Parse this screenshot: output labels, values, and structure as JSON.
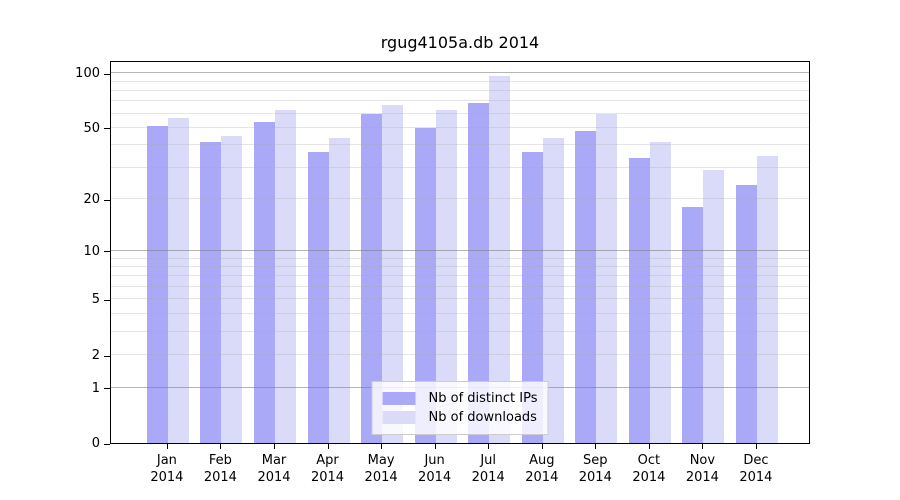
{
  "title": "rgug4105a.db 2014",
  "colors": {
    "ips_bar": "#a9a9f7",
    "downloads_bar": "#dadaf9",
    "axis": "#000000",
    "legend_border": "#cccccc"
  },
  "legend": {
    "items": [
      {
        "label": "Nb of distinct IPs",
        "color": "#a9a9f7"
      },
      {
        "label": "Nb of downloads",
        "color": "#dadaf9"
      }
    ]
  },
  "chart_data": {
    "type": "bar",
    "title": "rgug4105a.db 2014",
    "categories": [
      "Jan",
      "Feb",
      "Mar",
      "Apr",
      "May",
      "Jun",
      "Jul",
      "Aug",
      "Sep",
      "Oct",
      "Nov",
      "Dec"
    ],
    "category_year": "2014",
    "series": [
      {
        "name": "Nb of distinct IPs",
        "color": "#a9a9f7",
        "values": [
          51,
          42,
          54,
          37,
          60,
          50,
          69,
          37,
          48,
          34,
          18,
          24
        ]
      },
      {
        "name": "Nb of downloads",
        "color": "#dadaf9",
        "values": [
          57,
          45,
          63,
          44,
          67,
          63,
          96,
          44,
          60,
          42,
          29,
          35
        ]
      }
    ],
    "xlabel": "",
    "ylabel": "",
    "yscale": "log1p",
    "ylim": [
      0,
      118
    ],
    "yticks": [
      0,
      1,
      2,
      5,
      10,
      20,
      50,
      100
    ],
    "grid_minor_values": [
      2,
      3,
      4,
      5,
      6,
      7,
      8,
      9,
      20,
      30,
      40,
      50,
      60,
      70,
      80,
      90
    ],
    "grid_major_values": [
      1,
      10,
      100
    ],
    "grid": "on",
    "legend_position": "lower center"
  }
}
